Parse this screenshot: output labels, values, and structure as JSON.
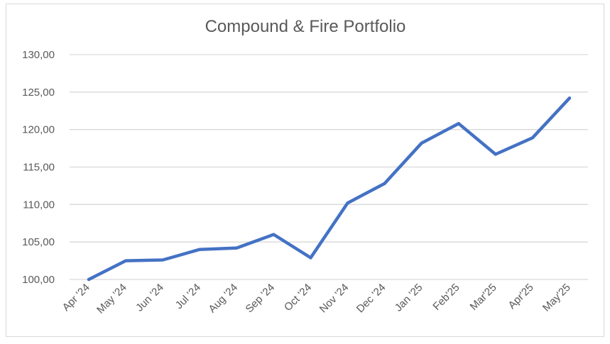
{
  "chart_data": {
    "type": "line",
    "title": "Compound & Fire Portfolio",
    "xlabel": "",
    "ylabel": "",
    "categories": [
      "Apr '24",
      "May '24",
      "Jun '24",
      "Jul '24",
      "Aug '24",
      "Sep '24",
      "Oct '24",
      "Nov '24",
      "Dec '24",
      "Jan '25",
      "Feb'25",
      "Mar'25",
      "Apr'25",
      "May'25"
    ],
    "series": [
      {
        "values": [
          100.0,
          102.5,
          102.6,
          104.0,
          104.2,
          106.0,
          102.9,
          110.2,
          112.8,
          118.2,
          120.8,
          116.7,
          118.9,
          124.2
        ]
      }
    ],
    "ylim": [
      100,
      130
    ],
    "yticks": [
      "100,00",
      "105,00",
      "110,00",
      "115,00",
      "120,00",
      "125,00",
      "130,00"
    ],
    "grid": true,
    "legend": "none",
    "colors": {
      "line": "#4472c4",
      "grid": "#d9d9d9",
      "text": "#595959"
    }
  }
}
